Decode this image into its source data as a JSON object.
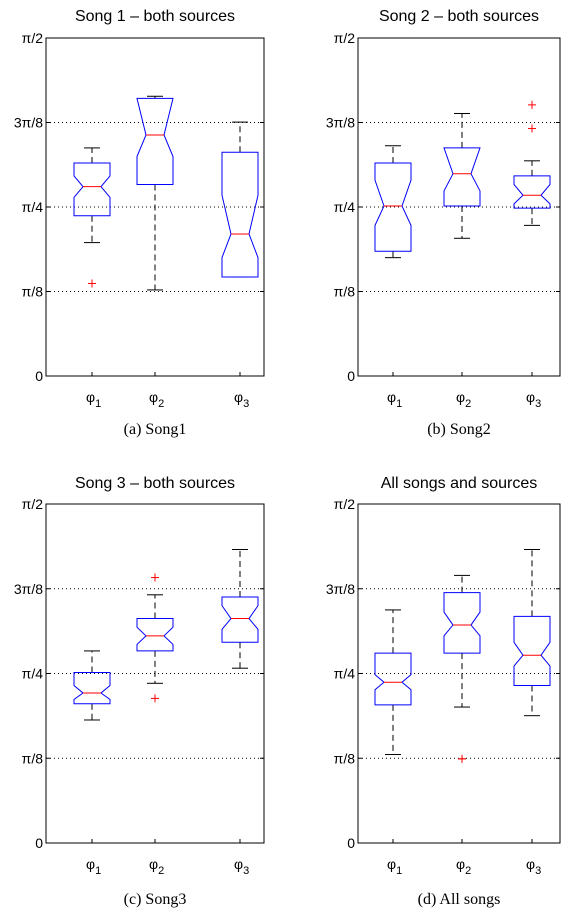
{
  "chart_data": [
    {
      "type": "box",
      "title": "Song 1 – both sources",
      "caption": "(a) Song1",
      "yticks": [
        "0",
        "π/8",
        "π/4",
        "3π/8",
        "π/2"
      ],
      "xticks": [
        {
          "base": "φ",
          "sub": "1"
        },
        {
          "base": "φ",
          "sub": "2"
        },
        {
          "base": "φ",
          "sub": "3"
        }
      ],
      "ylim": [
        0,
        1.5708
      ],
      "grid": "dotted horizontal at π/8, π/4, 3π/8",
      "boxes": [
        {
          "q1": 0.745,
          "median": 0.88,
          "q3": 0.99,
          "notch_lo": 0.83,
          "notch_hi": 0.93,
          "whisker_lo": 0.62,
          "whisker_hi": 1.06,
          "outliers": [
            0.43
          ]
        },
        {
          "q1": 0.89,
          "median": 1.12,
          "q3": 1.29,
          "notch_lo": 1.02,
          "notch_hi": 1.29,
          "whisker_lo": 0.4,
          "whisker_hi": 1.3,
          "outliers": []
        },
        {
          "q1": 0.46,
          "median": 0.66,
          "q3": 1.04,
          "notch_lo": 0.55,
          "notch_hi": 0.84,
          "whisker_lo": 0.46,
          "whisker_hi": 1.18,
          "outliers": []
        }
      ]
    },
    {
      "type": "box",
      "title": "Song 2 – both sources",
      "caption": "(b) Song2",
      "yticks": [
        "0",
        "π/8",
        "π/4",
        "3π/8",
        "π/2"
      ],
      "xticks": [
        {
          "base": "φ",
          "sub": "1"
        },
        {
          "base": "φ",
          "sub": "2"
        },
        {
          "base": "φ",
          "sub": "3"
        }
      ],
      "ylim": [
        0,
        1.5708
      ],
      "grid": "dotted horizontal at π/8, π/4, 3π/8",
      "boxes": [
        {
          "q1": 0.58,
          "median": 0.79,
          "q3": 0.99,
          "notch_lo": 0.7,
          "notch_hi": 0.91,
          "whisker_lo": 0.55,
          "whisker_hi": 1.07,
          "outliers": []
        },
        {
          "q1": 0.79,
          "median": 0.94,
          "q3": 1.06,
          "notch_lo": 0.86,
          "notch_hi": 1.06,
          "whisker_lo": 0.64,
          "whisker_hi": 1.22,
          "outliers": []
        },
        {
          "q1": 0.78,
          "median": 0.84,
          "q3": 0.93,
          "notch_lo": 0.8,
          "notch_hi": 0.89,
          "whisker_lo": 0.7,
          "whisker_hi": 1.0,
          "outliers": [
            1.15,
            1.26
          ]
        }
      ]
    },
    {
      "type": "box",
      "title": "Song 3 – both sources",
      "caption": "(c) Song3",
      "yticks": [
        "0",
        "π/8",
        "π/4",
        "3π/8",
        "π/2"
      ],
      "xticks": [
        {
          "base": "φ",
          "sub": "1"
        },
        {
          "base": "φ",
          "sub": "2"
        },
        {
          "base": "φ",
          "sub": "3"
        }
      ],
      "ylim": [
        0,
        1.5708
      ],
      "grid": "dotted horizontal at π/8, π/4, 3π/8",
      "boxes": [
        {
          "q1": 0.645,
          "median": 0.695,
          "q3": 0.79,
          "notch_lo": 0.665,
          "notch_hi": 0.73,
          "whisker_lo": 0.57,
          "whisker_hi": 0.89,
          "outliers": []
        },
        {
          "q1": 0.89,
          "median": 0.96,
          "q3": 1.04,
          "notch_lo": 0.92,
          "notch_hi": 1.0,
          "whisker_lo": 0.74,
          "whisker_hi": 1.15,
          "outliers": [
            0.67,
            1.23
          ]
        },
        {
          "q1": 0.93,
          "median": 1.04,
          "q3": 1.14,
          "notch_lo": 0.99,
          "notch_hi": 1.1,
          "whisker_lo": 0.81,
          "whisker_hi": 1.36,
          "outliers": []
        }
      ]
    },
    {
      "type": "box",
      "title": "All songs and sources",
      "caption": "(d) All songs",
      "yticks": [
        "0",
        "π/8",
        "π/4",
        "3π/8",
        "π/2"
      ],
      "xticks": [
        {
          "base": "φ",
          "sub": "1"
        },
        {
          "base": "φ",
          "sub": "2"
        },
        {
          "base": "φ",
          "sub": "3"
        }
      ],
      "ylim": [
        0,
        1.5708
      ],
      "grid": "dotted horizontal at π/8, π/4, 3π/8",
      "boxes": [
        {
          "q1": 0.64,
          "median": 0.745,
          "q3": 0.88,
          "notch_lo": 0.71,
          "notch_hi": 0.78,
          "whisker_lo": 0.41,
          "whisker_hi": 1.08,
          "outliers": []
        },
        {
          "q1": 0.88,
          "median": 1.01,
          "q3": 1.16,
          "notch_lo": 0.96,
          "notch_hi": 1.07,
          "whisker_lo": 0.63,
          "whisker_hi": 1.24,
          "outliers": [
            0.39,
            0.39
          ]
        },
        {
          "q1": 0.73,
          "median": 0.87,
          "q3": 1.05,
          "notch_lo": 0.82,
          "notch_hi": 0.93,
          "whisker_lo": 0.59,
          "whisker_hi": 1.36,
          "outliers": []
        }
      ]
    }
  ]
}
